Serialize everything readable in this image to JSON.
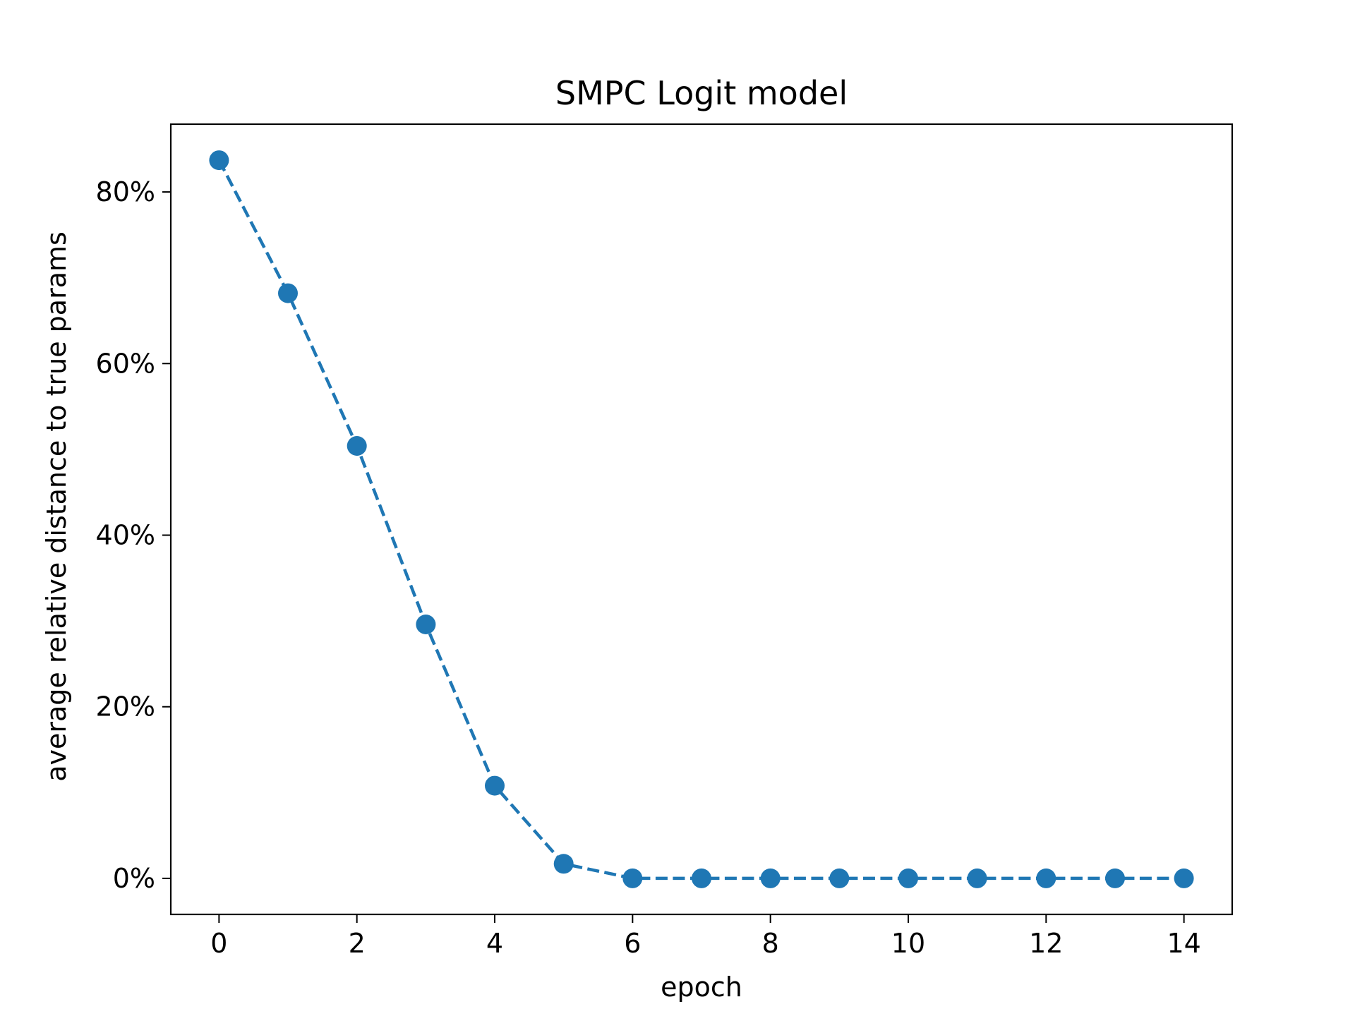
{
  "chart_data": {
    "type": "line",
    "title": "SMPC Logit model",
    "xlabel": "epoch",
    "ylabel": "average relative distance to true params",
    "x": [
      0,
      1,
      2,
      3,
      4,
      5,
      6,
      7,
      8,
      9,
      10,
      11,
      12,
      13,
      14
    ],
    "series": [
      {
        "values": [
          83.7,
          68.2,
          50.4,
          29.6,
          10.8,
          1.7,
          0,
          0,
          0,
          0,
          0,
          0,
          0,
          0,
          0
        ],
        "color": "#1f77b4",
        "line_style": "dashed",
        "marker": "circle"
      }
    ],
    "xlim": [
      -0.7,
      14.7
    ],
    "ylim": [
      -4.2,
      87.9
    ],
    "x_ticks": [
      0,
      2,
      4,
      6,
      8,
      10,
      12,
      14
    ],
    "x_tick_labels": [
      "0",
      "2",
      "4",
      "6",
      "8",
      "10",
      "12",
      "14"
    ],
    "y_ticks": [
      0,
      20,
      40,
      60,
      80
    ],
    "y_tick_labels": [
      "0%",
      "20%",
      "40%",
      "60%",
      "80%"
    ],
    "grid": false,
    "legend": "none"
  }
}
